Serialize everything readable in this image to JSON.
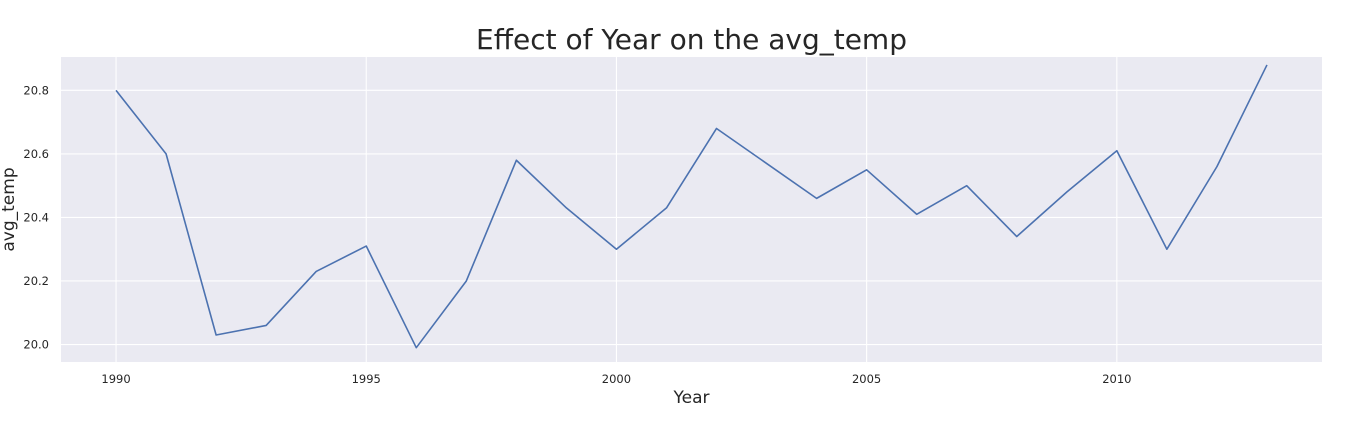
{
  "chart_data": {
    "type": "line",
    "title": "Effect of Year on the avg_temp",
    "xlabel": "Year",
    "ylabel": "avg_temp",
    "xlim": [
      1988.9,
      2014.1
    ],
    "ylim": [
      19.945,
      20.905
    ],
    "x_ticks": [
      1990,
      1995,
      2000,
      2005,
      2010
    ],
    "y_ticks": [
      20.0,
      20.2,
      20.4,
      20.6,
      20.8
    ],
    "x_tick_labels": [
      "1990",
      "1995",
      "2000",
      "2005",
      "2010"
    ],
    "y_tick_labels": [
      "20.0",
      "20.2",
      "20.4",
      "20.6",
      "20.8"
    ],
    "grid": true,
    "colors": {
      "background": "#eaeaf2",
      "grid": "#ffffff",
      "line": "#4c72b0"
    },
    "series": [
      {
        "x": [
          1990,
          1991,
          1992,
          1993,
          1994,
          1995,
          1996,
          1997,
          1998,
          1999,
          2000,
          2001,
          2002,
          2003,
          2004,
          2005,
          2006,
          2007,
          2008,
          2009,
          2010,
          2011,
          2012,
          2013
        ],
        "values": [
          20.8,
          20.6,
          20.03,
          20.06,
          20.23,
          20.31,
          19.99,
          20.2,
          20.58,
          20.43,
          20.3,
          20.43,
          20.68,
          20.57,
          20.46,
          20.55,
          20.41,
          20.5,
          20.34,
          20.48,
          20.61,
          20.3,
          20.56,
          20.88
        ]
      }
    ]
  }
}
